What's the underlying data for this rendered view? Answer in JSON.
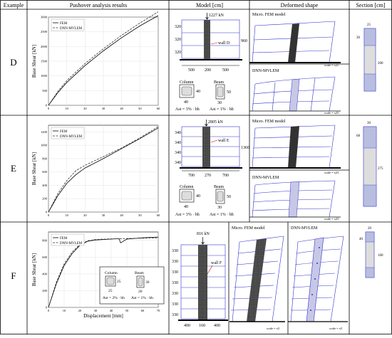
{
  "headers": {
    "example": "Example",
    "pushover": "Pushover analysis results",
    "model": "Model [cm]",
    "deformed": "Deformed shape",
    "section": "Section [cm]"
  },
  "legend": {
    "fem": "FEM",
    "dnn": "DNN-MVLEM"
  },
  "axis": {
    "ylabel": "Base Shear [kN]",
    "xlabel": "Displacement [mm]"
  },
  "rows": [
    {
      "label": "D",
      "load": "1227 kN",
      "wall": "wall D",
      "story_heights": [
        "320",
        "320",
        "320"
      ],
      "total_height": "960",
      "widths": [
        "500",
        "200",
        "500"
      ],
      "column": {
        "title": "Column",
        "dim1": "40",
        "dim2": "40",
        "ratio": "Ast = 3% · bh"
      },
      "beam": {
        "title": "Beam",
        "dim1": "50",
        "dim2": "30",
        "ratio": "Ast = 1% · bh"
      },
      "section_top": "25",
      "section_side": "30",
      "section_len": "200",
      "micro_title": "Micro. FEM model",
      "dnn_title": "DNN-MVLEM",
      "scale": "scale = x25",
      "yticks": [
        "3000",
        "2500",
        "2000",
        "1500",
        "1000",
        "500",
        "0"
      ],
      "xticks": [
        "0",
        "10",
        "20",
        "30",
        "40",
        "50",
        "60"
      ]
    },
    {
      "label": "E",
      "load": "2805 kN",
      "wall": "wall E",
      "story_heights": [
        "340",
        "340",
        "340",
        "340"
      ],
      "total_height": "1360",
      "widths": [
        "700",
        "270",
        "700"
      ],
      "column": {
        "title": "Column",
        "dim1": "40",
        "dim2": "40",
        "ratio": "Ast = 3% · bh"
      },
      "beam": {
        "title": "Beam",
        "dim1": "50",
        "dim2": "30",
        "ratio": "Ast = 1% · bh"
      },
      "section_top": "30",
      "section_side": "68",
      "section_len": "275",
      "micro_title": "Micro. FEM model",
      "dnn_title": "DNN-MVLEM",
      "scale": "scale = x25",
      "yticks": [
        "1200",
        "1000",
        "800",
        "600",
        "400",
        "200",
        "0"
      ],
      "xticks": [
        "0",
        "10",
        "20",
        "30",
        "40",
        "50",
        "60"
      ]
    },
    {
      "label": "F",
      "load": "816 kN",
      "wall": "wall F",
      "story_heights": [
        "330",
        "330",
        "330",
        "330",
        "330",
        "330",
        "330"
      ],
      "widths": [
        "400",
        "160",
        "400"
      ],
      "column": {
        "title": "Column",
        "dim1": "25",
        "dim2": "25",
        "ratio": "Ast = 2% · bh"
      },
      "beam": {
        "title": "Beam",
        "dim1": "30",
        "dim2": "20",
        "ratio": "Ast = 1% · bh"
      },
      "section_top": "20",
      "section_side": "40",
      "section_len": "160",
      "micro_title": "Micro. FEM model",
      "dnn_title": "DNN-MVLEM",
      "scale": "scale = x5",
      "yticks": [
        "800",
        "600",
        "400",
        "200",
        "0"
      ],
      "xticks": [
        "0",
        "10",
        "20",
        "30",
        "40",
        "50",
        "60",
        "70"
      ]
    }
  ],
  "chart_data": [
    {
      "type": "line",
      "title": "",
      "xlabel": "",
      "ylabel": "Base Shear [kN]",
      "xlim": [
        0,
        60
      ],
      "ylim": [
        0,
        3000
      ],
      "series": [
        {
          "name": "FEM",
          "x": [
            0,
            5,
            10,
            20,
            30,
            40,
            50,
            60
          ],
          "y": [
            0,
            420,
            780,
            1350,
            1850,
            2300,
            2700,
            3050
          ]
        },
        {
          "name": "DNN-MVLEM",
          "x": [
            0,
            5,
            10,
            20,
            30,
            40,
            50,
            60
          ],
          "y": [
            0,
            460,
            840,
            1420,
            1920,
            2380,
            2800,
            3180
          ]
        }
      ]
    },
    {
      "type": "line",
      "title": "",
      "xlabel": "",
      "ylabel": "Base Shear [kN]",
      "xlim": [
        0,
        60
      ],
      "ylim": [
        0,
        1300
      ],
      "series": [
        {
          "name": "FEM",
          "x": [
            0,
            5,
            10,
            15,
            20,
            30,
            40,
            50,
            60
          ],
          "y": [
            0,
            240,
            430,
            560,
            660,
            800,
            950,
            1100,
            1260
          ]
        },
        {
          "name": "DNN-MVLEM",
          "x": [
            0,
            5,
            10,
            15,
            20,
            30,
            40,
            50,
            60
          ],
          "y": [
            0,
            270,
            470,
            620,
            700,
            830,
            960,
            1110,
            1280
          ]
        }
      ]
    },
    {
      "type": "line",
      "title": "",
      "xlabel": "Displacement [mm]",
      "ylabel": "Base Shear [kN]",
      "xlim": [
        0,
        70
      ],
      "ylim": [
        0,
        900
      ],
      "series": [
        {
          "name": "FEM",
          "x": [
            0,
            5,
            10,
            15,
            20,
            25,
            30,
            40,
            45,
            46,
            50,
            60,
            70
          ],
          "y": [
            0,
            280,
            500,
            640,
            740,
            790,
            805,
            815,
            820,
            770,
            815,
            830,
            840
          ]
        },
        {
          "name": "DNN-MVLEM",
          "x": [
            0,
            5,
            10,
            15,
            20,
            25,
            30,
            40,
            50,
            60,
            70
          ],
          "y": [
            0,
            300,
            520,
            660,
            750,
            795,
            810,
            818,
            822,
            826,
            830
          ]
        }
      ]
    }
  ]
}
